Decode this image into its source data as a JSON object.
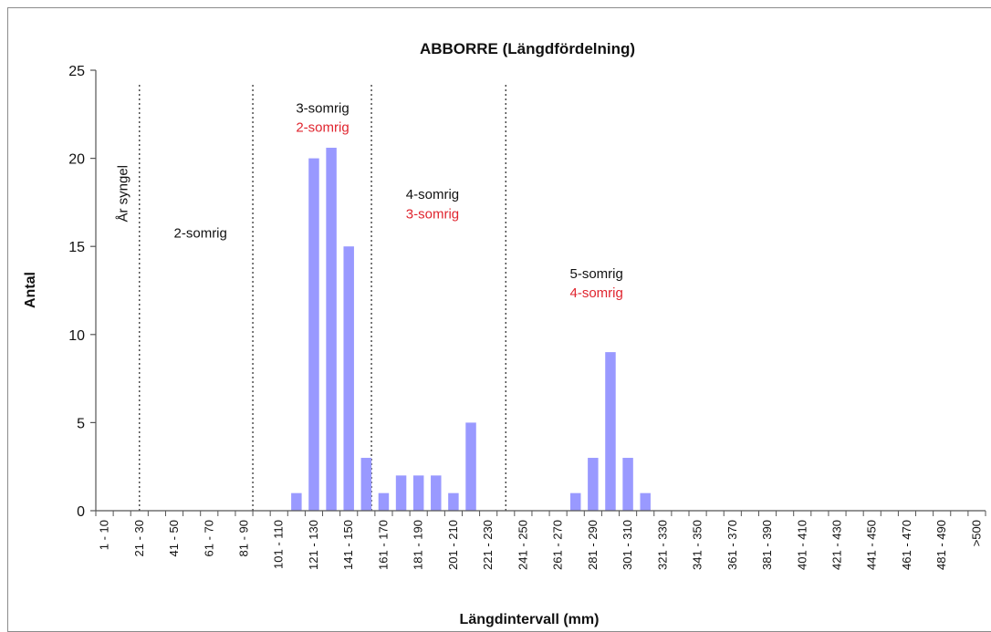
{
  "chart_data": {
    "type": "bar",
    "title": "ABBORRE (Längdfördelning)",
    "xlabel": "Längdintervall (mm)",
    "ylabel": "Antal",
    "ylim": [
      0,
      25
    ],
    "yticks": [
      0,
      5,
      10,
      15,
      20,
      25
    ],
    "grid": false,
    "bar_color": "#9999ff",
    "categories": [
      "1 - 10",
      "11 - 20",
      "21 - 30",
      "31 - 40",
      "41 - 50",
      "51 - 60",
      "61 - 70",
      "71 - 80",
      "81 - 90",
      "91 - 100",
      "101 - 110",
      "111 - 120",
      "121 - 130",
      "131 - 140",
      "141 - 150",
      "151 - 160",
      "161 - 170",
      "171 - 180",
      "181 - 190",
      "191 - 200",
      "201 - 210",
      "211 - 220",
      "221 - 230",
      "231 - 240",
      "241 - 250",
      "251 - 260",
      "261 - 270",
      "271 - 280",
      "281 - 290",
      "291 - 300",
      "301 - 310",
      "311 - 320",
      "321 - 330",
      "331 - 340",
      "341 - 350",
      "351 - 360",
      "361 - 370",
      "371 - 380",
      "381 - 390",
      "391 - 400",
      "401 - 410",
      "411 - 420",
      "421 - 430",
      "431 - 440",
      "441 - 450",
      "451 - 460",
      "461 - 470",
      "471 - 480",
      "481 - 490",
      "491 - 500",
      ">500"
    ],
    "tick_labels": [
      "1 - 10",
      "",
      "21 - 30",
      "",
      "41 - 50",
      "",
      "61 - 70",
      "",
      "81 - 90",
      "",
      "101 - 110",
      "",
      "121 - 130",
      "",
      "141 - 150",
      "",
      "161 - 170",
      "",
      "181 - 190",
      "",
      "201 - 210",
      "",
      "221 - 230",
      "",
      "241 - 250",
      "",
      "261 - 270",
      "",
      "281 - 290",
      "",
      "301 - 310",
      "",
      "321 - 330",
      "",
      "341 - 350",
      "",
      "361 - 370",
      "",
      "381 - 390",
      "",
      "401 - 410",
      "",
      "421 - 430",
      "",
      "441 - 450",
      "",
      "461 - 470",
      "",
      "481 - 490",
      "",
      ">500"
    ],
    "values": [
      0,
      0,
      0,
      0,
      0,
      0,
      0,
      0,
      0,
      0,
      0,
      1,
      20,
      20.6,
      15,
      3,
      1,
      2,
      2,
      2,
      1,
      5,
      0,
      0,
      0,
      0,
      0,
      1,
      3,
      9,
      3,
      1,
      0,
      0,
      0,
      0,
      0,
      0,
      0,
      0,
      0,
      0,
      0,
      0,
      0,
      0,
      0,
      0,
      0,
      0,
      0
    ],
    "dividers_after_index": [
      2.5,
      9,
      15.8,
      23.5
    ],
    "annotations": [
      {
        "text": "År syngel",
        "color": "#111111",
        "cat": 1.3,
        "y": 18,
        "rotate": -90
      },
      {
        "text": "2-somrig",
        "color": "#111111",
        "cat": 5.5,
        "y": 15.5
      },
      {
        "text": "3-somrig",
        "color": "#111111",
        "cat": 12.5,
        "y": 22.6
      },
      {
        "text": "2-somrig",
        "color": "#e0242e",
        "cat": 12.5,
        "y": 21.5
      },
      {
        "text": "4-somrig",
        "color": "#111111",
        "cat": 18.8,
        "y": 17.7
      },
      {
        "text": "3-somrig",
        "color": "#e0242e",
        "cat": 18.8,
        "y": 16.6
      },
      {
        "text": "5-somrig",
        "color": "#111111",
        "cat": 28.2,
        "y": 13.2
      },
      {
        "text": "4-somrig",
        "color": "#e0242e",
        "cat": 28.2,
        "y": 12.1
      }
    ]
  }
}
